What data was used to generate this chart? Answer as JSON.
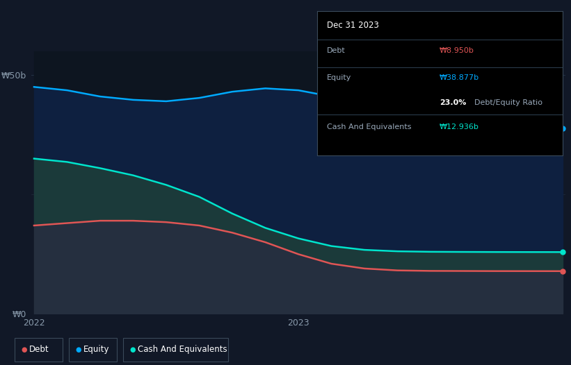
{
  "background_color": "#111827",
  "plot_bg_color": "#111827",
  "grid_color": "#243447",
  "line_equity_color": "#00aaff",
  "line_cash_color": "#00e5cc",
  "line_debt_color": "#e05555",
  "fill_equity_color": "#0d2545",
  "fill_cash_color": "#0d3535",
  "fill_debt_color": "#2a3040",
  "equity_values": [
    47.5,
    46.8,
    45.5,
    44.8,
    44.5,
    45.2,
    46.5,
    47.2,
    46.8,
    45.5,
    44.0,
    42.0,
    40.5,
    39.8,
    39.2,
    38.95,
    38.877
  ],
  "cash_values": [
    32.5,
    31.8,
    30.5,
    29.0,
    27.0,
    24.5,
    21.0,
    18.0,
    15.8,
    14.2,
    13.4,
    13.1,
    13.0,
    12.97,
    12.95,
    12.94,
    12.936
  ],
  "debt_values": [
    18.5,
    19.0,
    19.5,
    19.5,
    19.2,
    18.5,
    17.0,
    15.0,
    12.5,
    10.5,
    9.5,
    9.1,
    9.0,
    8.98,
    8.96,
    8.955,
    8.95
  ],
  "n_points": 17,
  "tooltip_title": "Dec 31 2023",
  "tooltip_debt_label": "Debt",
  "tooltip_debt_value": "₩8.950b",
  "tooltip_equity_label": "Equity",
  "tooltip_equity_value": "₩38.877b",
  "tooltip_ratio_value": "23.0%",
  "tooltip_ratio_label": "Debt/Equity Ratio",
  "tooltip_cash_label": "Cash And Equivalents",
  "tooltip_cash_value": "₩12.936b",
  "legend_items": [
    "Debt",
    "Equity",
    "Cash And Equivalents"
  ],
  "legend_colors": [
    "#e05555",
    "#00aaff",
    "#00e5cc"
  ],
  "ylim": [
    0,
    55
  ],
  "ytick_positions": [
    0,
    50
  ],
  "ytick_labels": [
    "₩0",
    "₩50b"
  ],
  "xtick_positions": [
    0.0,
    0.5
  ],
  "xtick_labels": [
    "2022",
    "2023"
  ]
}
